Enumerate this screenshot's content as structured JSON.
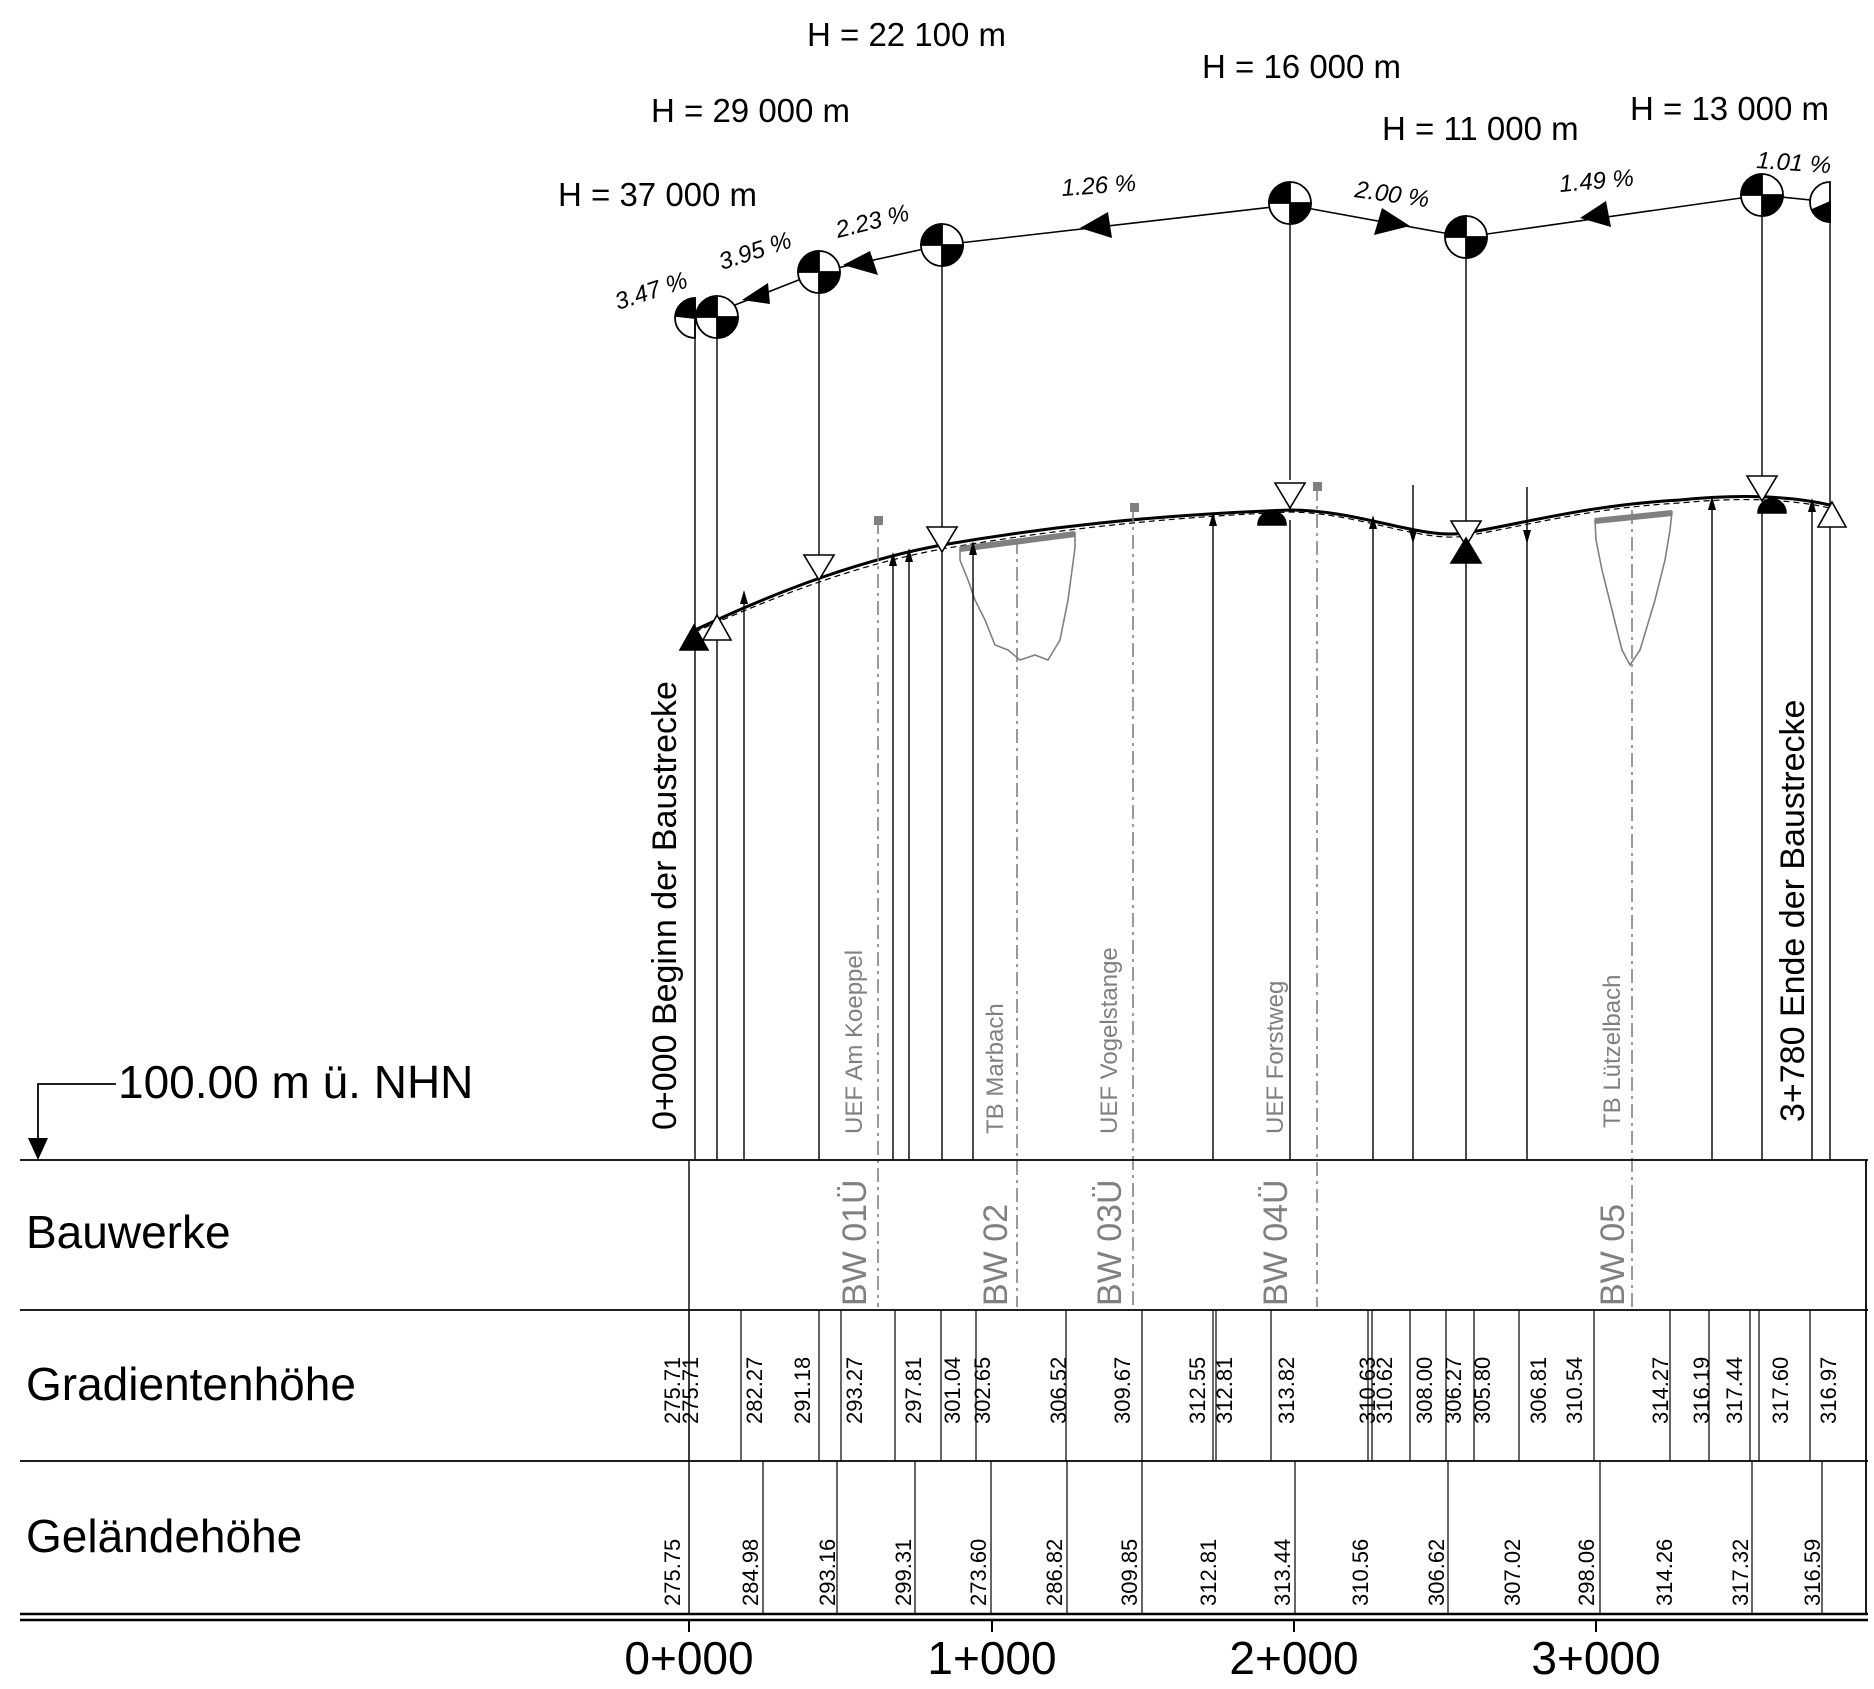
{
  "datum": {
    "label": "100.00 m ü. NHN"
  },
  "start_label": "0+000 Beginn der Baustrecke",
  "end_label": "3+780 Ende der Baustrecke",
  "rows": {
    "bauwerke": "Bauwerke",
    "gradient": "Gradientenhöhe",
    "gelaende": "Geländehöhe"
  },
  "stations": [
    "0+000",
    "1+000",
    "2+000",
    "3+000"
  ],
  "radii": [
    {
      "text": "H = 37 000 m",
      "station": 0
    },
    {
      "text": "H = 29 000 m",
      "station": 430
    },
    {
      "text": "H = 22 100 m",
      "station": 840
    },
    {
      "text": "H = 16 000 m",
      "station": 1990
    },
    {
      "text": "H = 11 000 m",
      "station": 2580
    },
    {
      "text": "H = 13 000 m",
      "station": 3560
    }
  ],
  "grades": [
    "3.47 %",
    "3.95 %",
    "2.23 %",
    "1.26 %",
    "2.00 %",
    "1.49 %",
    "1.01 %"
  ],
  "structures": [
    {
      "code": "BW 01Ü",
      "name": "UEF Am Koeppel",
      "station": 630
    },
    {
      "code": "BW 02",
      "name": "TB Marbach",
      "station": 1090
    },
    {
      "code": "BW 03Ü",
      "name": "UEF Vogelstange",
      "station": 1480
    },
    {
      "code": "BW 04Ü",
      "name": "UEF Forstweg",
      "station": 2080
    },
    {
      "code": "BW 05",
      "name": "TB Lützelbach",
      "station": 3110
    }
  ],
  "gradient_values": [
    "275.71",
    "275.71",
    "282.27",
    "291.18",
    "293.27",
    "297.81",
    "301.04",
    "302.65",
    "306.52",
    "309.67",
    "312.55",
    "312.81",
    "313.82",
    "310.63",
    "310.62",
    "308.00",
    "306.27",
    "305.80",
    "306.81",
    "310.54",
    "314.27",
    "316.19",
    "317.44",
    "317.60",
    "316.97"
  ],
  "terrain_values": [
    "275.75",
    "284.98",
    "293.16",
    "299.31",
    "273.60",
    "286.82",
    "309.85",
    "312.81",
    "313.44",
    "310.56",
    "306.62",
    "307.02",
    "298.06",
    "314.26",
    "317.32",
    "316.59"
  ]
}
